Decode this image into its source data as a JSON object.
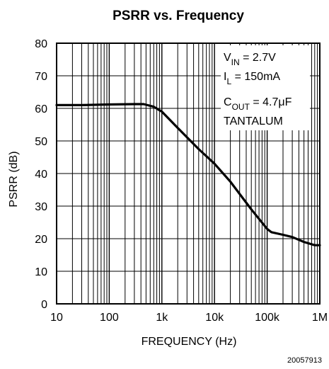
{
  "chart_data": {
    "type": "line",
    "title": "PSRR vs. Frequency",
    "xlabel": "FREQUENCY (Hz)",
    "ylabel": "PSRR (dB)",
    "x_scale": "log",
    "xlim": [
      10,
      1000000
    ],
    "ylim": [
      0,
      80
    ],
    "grid": true,
    "x_ticks": [
      10,
      100,
      1000,
      10000,
      100000,
      1000000
    ],
    "x_tick_labels": [
      "10",
      "100",
      "1k",
      "10k",
      "100k",
      "1M"
    ],
    "y_ticks": [
      0,
      10,
      20,
      30,
      40,
      50,
      60,
      70,
      80
    ],
    "y_tick_labels": [
      "0",
      "10",
      "20",
      "30",
      "40",
      "50",
      "60",
      "70",
      "80"
    ],
    "series": [
      {
        "x": [
          10,
          30,
          100,
          300,
          450,
          700,
          1000,
          2000,
          5000,
          10000,
          20000,
          50000,
          100000,
          120000,
          200000,
          300000,
          500000,
          800000,
          1000000
        ],
        "y": [
          61,
          61,
          61.2,
          61.3,
          61.3,
          60.5,
          59,
          54,
          47.5,
          43,
          37.5,
          29,
          23,
          22,
          21.2,
          20.5,
          19,
          18,
          18
        ]
      }
    ],
    "annotations": [
      {
        "main": "V",
        "sub": "IN",
        "rest": " = 2.7V"
      },
      {
        "main": "I",
        "sub": "L",
        "rest": " = 150mA"
      },
      {
        "main": "C",
        "sub": "OUT",
        "rest": " = 4.7μF"
      },
      {
        "main": "TANTALUM",
        "sub": "",
        "rest": ""
      }
    ],
    "figure_number": "20057913",
    "line_color": "#000000",
    "grid_color": "#000000"
  }
}
